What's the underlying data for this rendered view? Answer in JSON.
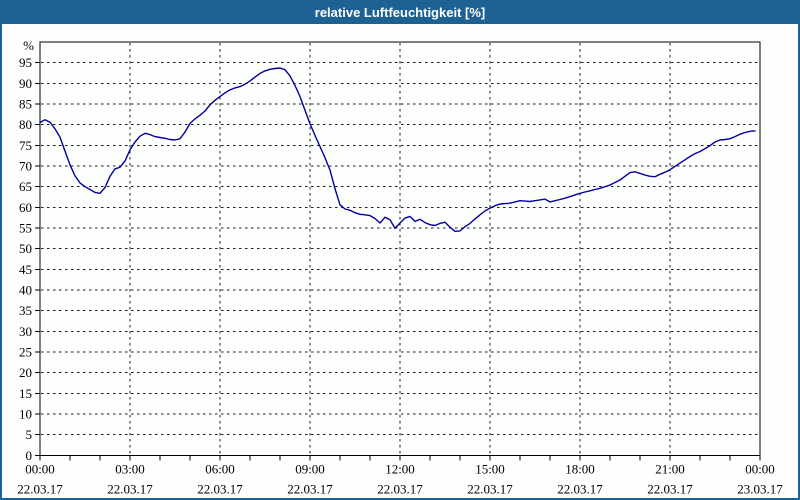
{
  "window": {
    "title": "relative Luftfeuchtigkeit [%]"
  },
  "colors": {
    "titlebar_bg": "#1e6193",
    "frame_border": "#1e6193",
    "title_text": "#ffffff",
    "line": "#0000a0",
    "grid": "#1c1c1c",
    "background": "#fdfffd"
  },
  "chart_data": {
    "type": "line",
    "title": "relative Luftfeuchtigkeit [%]",
    "xlabel": "",
    "ylabel": "%",
    "ylim": [
      0,
      100
    ],
    "grid": true,
    "legend": "none",
    "yticks": [
      0,
      5,
      10,
      15,
      20,
      25,
      30,
      35,
      40,
      45,
      50,
      55,
      60,
      65,
      70,
      75,
      80,
      85,
      90,
      95
    ],
    "x_axis": {
      "minor_tick_hours": 1,
      "major_tick_hours": 3,
      "x_labels": [
        {
          "time": "00:00",
          "date": "22.03.17"
        },
        {
          "time": "03:00",
          "date": "22.03.17"
        },
        {
          "time": "06:00",
          "date": "22.03.17"
        },
        {
          "time": "09:00",
          "date": "22.03.17"
        },
        {
          "time": "12:00",
          "date": "22.03.17"
        },
        {
          "time": "15:00",
          "date": "22.03.17"
        },
        {
          "time": "18:00",
          "date": "22.03.17"
        },
        {
          "time": "21:00",
          "date": "22.03.17"
        },
        {
          "time": "00:00",
          "date": "23.03.17"
        }
      ]
    },
    "x_start_minutes": 0,
    "x_step_minutes": 10,
    "series": [
      {
        "name": "relative Luftfeuchtigkeit",
        "unit": "%",
        "color": "#0000a0",
        "values": [
          80.5,
          81.2,
          80.6,
          79.0,
          77.0,
          73.6,
          70.3,
          67.6,
          65.9,
          65.0,
          64.3,
          63.6,
          63.4,
          64.8,
          67.5,
          69.3,
          69.7,
          71.2,
          73.9,
          75.8,
          77.2,
          77.9,
          77.6,
          77.1,
          76.9,
          76.7,
          76.4,
          76.3,
          76.6,
          78.2,
          80.3,
          81.4,
          82.3,
          83.3,
          84.8,
          85.9,
          86.8,
          87.7,
          88.4,
          88.9,
          89.2,
          89.8,
          90.6,
          91.5,
          92.4,
          93.0,
          93.4,
          93.6,
          93.7,
          93.3,
          91.8,
          89.5,
          86.8,
          83.5,
          80.2,
          77.4,
          74.7,
          72.0,
          69.0,
          64.5,
          60.6,
          59.6,
          59.3,
          58.7,
          58.3,
          58.2,
          58.0,
          57.3,
          56.2,
          57.6,
          57.0,
          54.9,
          56.2,
          57.4,
          57.8,
          56.6,
          57.1,
          56.3,
          55.8,
          55.6,
          56.1,
          56.4,
          55.2,
          54.2,
          54.3,
          55.3,
          56.1,
          57.2,
          58.2,
          59.1,
          59.8,
          60.4,
          60.8,
          60.9,
          61.0,
          61.3,
          61.6,
          61.5,
          61.4,
          61.6,
          61.8,
          62.0,
          61.3,
          61.6,
          61.9,
          62.2,
          62.6,
          63.0,
          63.4,
          63.7,
          64.0,
          64.3,
          64.6,
          65.0,
          65.4,
          66.0,
          66.6,
          67.5,
          68.4,
          68.6,
          68.2,
          67.8,
          67.5,
          67.4,
          68.0,
          68.5,
          69.1,
          69.9,
          70.7,
          71.5,
          72.3,
          73.0,
          73.5,
          74.2,
          74.9,
          75.8,
          76.3,
          76.4,
          76.6,
          77.1,
          77.7,
          78.1,
          78.4,
          78.5
        ]
      }
    ]
  }
}
